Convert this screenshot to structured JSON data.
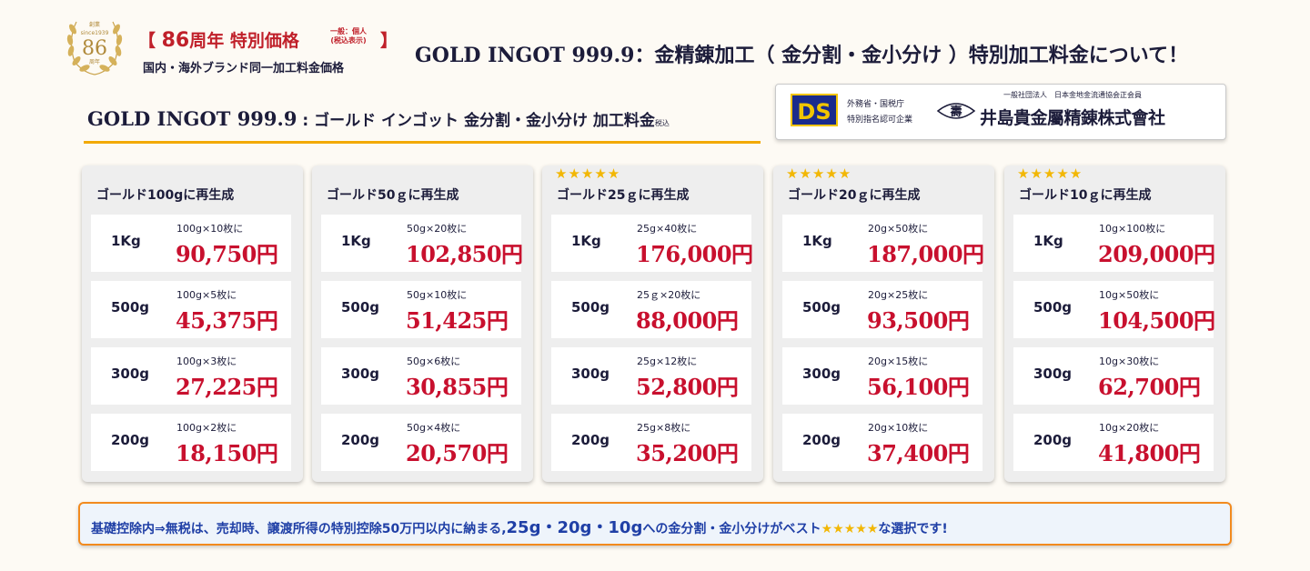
{
  "anniversary": {
    "badge_top": "創業",
    "badge_since": "since1939",
    "badge_num": "86",
    "badge_bottom": "周年",
    "title_open": "【 ",
    "title_num": "86",
    "title_text": "周年 特別価格",
    "title_close": "】",
    "note_line1": "一般：個人",
    "note_line2": "(税込表示)",
    "subtitle": "国内・海外ブランド同一加工料金価格"
  },
  "main_title": {
    "en": "GOLD INGOT 999.9",
    "jp": "：金精錬加工（ 金分割・金小分け ）特別加工料金について！"
  },
  "sub_title": {
    "en": "GOLD INGOT 999.9",
    "jp": " : ゴールド インゴット 金分割・金小分け 加工料金",
    "tax": "税込"
  },
  "company": {
    "logo_text": "DS",
    "auth_line1": "外務省・国税庁",
    "auth_line2": "特別指名認可企業",
    "emblem_char": "壽",
    "association": "一般社団法人　日本金地金流通協会正会員",
    "name": "井島貴金屬精錬株式會社"
  },
  "panels": [
    {
      "stars": "",
      "title": "ゴールド100gに再生成",
      "rows": [
        {
          "weight": "1Kg",
          "detail": "100g×10枚に",
          "price": "90,750円"
        },
        {
          "weight": "500g",
          "detail": "100g×5枚に",
          "price": "45,375円"
        },
        {
          "weight": "300g",
          "detail": "100g×3枚に",
          "price": "27,225円"
        },
        {
          "weight": "200g",
          "detail": "100g×2枚に",
          "price": "18,150円"
        }
      ]
    },
    {
      "stars": "",
      "title": "ゴールド50ｇに再生成",
      "rows": [
        {
          "weight": "1Kg",
          "detail": "50g×20枚に",
          "price": "102,850円"
        },
        {
          "weight": "500g",
          "detail": "50g×10枚に",
          "price": "51,425円"
        },
        {
          "weight": "300g",
          "detail": "50g×6枚に",
          "price": "30,855円"
        },
        {
          "weight": "200g",
          "detail": "50g×4枚に",
          "price": "20,570円"
        }
      ]
    },
    {
      "stars": "★★★★★",
      "title": "ゴールド25ｇに再生成",
      "rows": [
        {
          "weight": "1Kg",
          "detail": "25g×40枚に",
          "price": "176,000円"
        },
        {
          "weight": "500g",
          "detail": "25ｇ×20枚に",
          "price": "88,000円"
        },
        {
          "weight": "300g",
          "detail": "25g×12枚に",
          "price": "52,800円"
        },
        {
          "weight": "200g",
          "detail": "25g×8枚に",
          "price": "35,200円"
        }
      ]
    },
    {
      "stars": "★★★★★",
      "title": "ゴールド20ｇに再生成",
      "rows": [
        {
          "weight": "1Kg",
          "detail": "20g×50枚に",
          "price": "187,000円"
        },
        {
          "weight": "500g",
          "detail": "20g×25枚に",
          "price": "93,500円"
        },
        {
          "weight": "300g",
          "detail": "20g×15枚に",
          "price": "56,100円"
        },
        {
          "weight": "200g",
          "detail": "20g×10枚に",
          "price": "37,400円"
        }
      ]
    },
    {
      "stars": "★★★★★",
      "title": "ゴールド10ｇに再生成",
      "rows": [
        {
          "weight": "1Kg",
          "detail": "10g×100枚に",
          "price": "209,000円"
        },
        {
          "weight": "500g",
          "detail": "10g×50枚に",
          "price": "104,500円"
        },
        {
          "weight": "300g",
          "detail": "10g×30枚に",
          "price": "62,700円"
        },
        {
          "weight": "200g",
          "detail": "10g×20枚に",
          "price": "41,800円"
        }
      ]
    }
  ],
  "note": {
    "part1": "基礎控除内⇒無税は、売却時、譲渡所得の特別控除50万円以内に納まる,",
    "big": "25g・20g・10g",
    "part2": "への金分割・金小分けがベスト",
    "stars": "★★★★★",
    "part3": "な選択です!"
  },
  "colors": {
    "price": "#c8102e",
    "accent_gold": "#f2a900",
    "star": "#f2b705",
    "note_border": "#f28a1e",
    "note_text": "#1f3fa6",
    "ds_blue": "#1a2b8c"
  }
}
